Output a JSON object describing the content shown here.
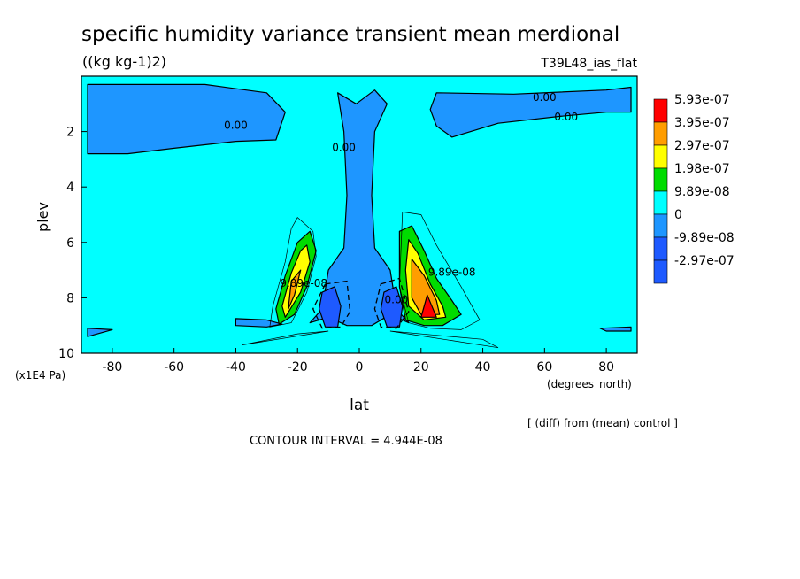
{
  "chart_data": {
    "type": "heatmap",
    "title": "specific humidity variance transient mean merdional",
    "units": "((kg kg-1)2)",
    "run_label": "T39L48_ias_flat",
    "xlabel": "lat",
    "x_units": "(degrees_north)",
    "ylabel": "plev",
    "y_units": "(x1E4 Pa)",
    "xlim": [
      -90,
      90
    ],
    "ylim": [
      10,
      0
    ],
    "x_ticks": [
      -80,
      -60,
      -40,
      -20,
      0,
      20,
      40,
      60,
      80
    ],
    "x_tick_labels": [
      "-80",
      "-60",
      "-40",
      "-20",
      "0",
      "20",
      "40",
      "60",
      "80"
    ],
    "y_ticks": [
      2,
      4,
      6,
      8,
      10
    ],
    "y_tick_labels": [
      "2",
      "4",
      "6",
      "8",
      "10"
    ],
    "footer": "[ (diff) from (mean) control ]",
    "contour_interval": "CONTOUR INTERVAL = 4.944E-08",
    "legend": [
      {
        "label": "5.93e-07",
        "color": "#ff0000"
      },
      {
        "label": "3.95e-07",
        "color": "#ff9d00"
      },
      {
        "label": "2.97e-07",
        "color": "#ffff00"
      },
      {
        "label": "1.98e-07",
        "color": "#00dc00"
      },
      {
        "label": "9.89e-08",
        "color": "#00ffff"
      },
      {
        "label": "0",
        "color": "#1e96ff"
      },
      {
        "label": "-9.89e-08",
        "color": "#1e5aff"
      },
      {
        "label": "-2.97e-07",
        "color": ""
      }
    ],
    "contour_labels": [
      {
        "text": "0.00",
        "x": -40,
        "y": 1.9
      },
      {
        "text": "0.00",
        "x": 60,
        "y": 0.9
      },
      {
        "text": "0.00",
        "x": 67,
        "y": 1.6
      },
      {
        "text": "0.00",
        "x": -5,
        "y": 2.7
      },
      {
        "text": "9.89e-08",
        "x": -18,
        "y": 7.6
      },
      {
        "text": "9.89e-08",
        "x": 30,
        "y": 7.2
      },
      {
        "text": "0.00",
        "x": 12,
        "y": 8.2
      }
    ],
    "regions": [
      {
        "level": "0",
        "color": "#1e96ff",
        "points": [
          [
            -88,
            0.3
          ],
          [
            -50,
            0.3
          ],
          [
            -30,
            0.6
          ],
          [
            -24,
            1.3
          ],
          [
            -27,
            2.3
          ],
          [
            -40,
            2.35
          ],
          [
            -60,
            2.6
          ],
          [
            -75,
            2.8
          ],
          [
            -88,
            2.8
          ]
        ]
      },
      {
        "level": "0",
        "color": "#1e96ff",
        "points": [
          [
            25,
            0.6
          ],
          [
            50,
            0.65
          ],
          [
            80,
            0.5
          ],
          [
            88,
            0.4
          ],
          [
            88,
            1.3
          ],
          [
            80,
            1.3
          ],
          [
            65,
            1.45
          ],
          [
            45,
            1.7
          ],
          [
            30,
            2.2
          ],
          [
            25,
            1.8
          ],
          [
            23,
            1.2
          ]
        ]
      },
      {
        "level": "0",
        "color": "#1e96ff",
        "points": [
          [
            -7,
            0.6
          ],
          [
            -1,
            1.0
          ],
          [
            5,
            0.5
          ],
          [
            9,
            1.0
          ],
          [
            5,
            2.0
          ],
          [
            4,
            4.3
          ],
          [
            5,
            6.2
          ],
          [
            10,
            7.0
          ],
          [
            12,
            8.4
          ],
          [
            16,
            8.9
          ],
          [
            10,
            8.6
          ],
          [
            4,
            9.0
          ],
          [
            -4,
            9.0
          ],
          [
            -10,
            8.7
          ],
          [
            -16,
            8.9
          ],
          [
            -12,
            8.4
          ],
          [
            -10,
            7.0
          ],
          [
            -5,
            6.2
          ],
          [
            -4,
            4.3
          ],
          [
            -5,
            2.0
          ]
        ]
      },
      {
        "level": "0",
        "color": "#1e96ff",
        "points": [
          [
            -40,
            8.75
          ],
          [
            -30,
            8.8
          ],
          [
            -25,
            8.95
          ],
          [
            -30,
            9.05
          ],
          [
            -40,
            9.0
          ]
        ]
      },
      {
        "level": "0",
        "color": "#1e96ff",
        "points": [
          [
            -88,
            9.1
          ],
          [
            -80,
            9.15
          ],
          [
            -88,
            9.4
          ]
        ]
      },
      {
        "level": "0",
        "color": "#1e96ff",
        "points": [
          [
            78,
            9.1
          ],
          [
            88,
            9.05
          ],
          [
            88,
            9.2
          ],
          [
            80,
            9.2
          ]
        ]
      },
      {
        "level": "-9.89e-08",
        "color": "#1e5aff",
        "points": [
          [
            -12,
            7.8
          ],
          [
            -8,
            7.6
          ],
          [
            -6,
            8.3
          ],
          [
            -7,
            9.05
          ],
          [
            -11,
            9.05
          ],
          [
            -13,
            8.4
          ]
        ]
      },
      {
        "level": "-9.89e-08",
        "color": "#1e5aff",
        "points": [
          [
            8,
            7.8
          ],
          [
            12,
            7.6
          ],
          [
            14,
            8.3
          ],
          [
            13,
            9.05
          ],
          [
            9,
            9.05
          ],
          [
            7,
            8.4
          ]
        ]
      },
      {
        "level": "9.89e-08",
        "color": "#00dc00",
        "points": [
          [
            -16,
            5.6
          ],
          [
            -14,
            6.3
          ],
          [
            -17,
            7.6
          ],
          [
            -21,
            8.6
          ],
          [
            -26,
            8.95
          ],
          [
            -27,
            8.4
          ],
          [
            -24,
            7.2
          ],
          [
            -20,
            6.0
          ]
        ]
      },
      {
        "level": "9.89e-08",
        "color": "#00dc00",
        "points": [
          [
            13,
            5.6
          ],
          [
            17,
            5.4
          ],
          [
            21,
            6.3
          ],
          [
            25,
            7.3
          ],
          [
            30,
            8.1
          ],
          [
            33,
            8.6
          ],
          [
            27,
            9.0
          ],
          [
            21,
            9.0
          ],
          [
            15,
            8.8
          ],
          [
            13,
            7.6
          ]
        ]
      },
      {
        "level": "1.98e-07",
        "color": "#ffff00",
        "points": [
          [
            -17,
            6.1
          ],
          [
            -16,
            6.7
          ],
          [
            -19,
            7.8
          ],
          [
            -24,
            8.7
          ],
          [
            -25,
            8.3
          ],
          [
            -22,
            7.1
          ],
          [
            -19,
            6.3
          ]
        ]
      },
      {
        "level": "1.98e-07",
        "color": "#ffff00",
        "points": [
          [
            16,
            5.9
          ],
          [
            19,
            6.4
          ],
          [
            23,
            7.5
          ],
          [
            27,
            8.3
          ],
          [
            28,
            8.7
          ],
          [
            21,
            8.8
          ],
          [
            16,
            8.3
          ],
          [
            15,
            7.0
          ]
        ]
      },
      {
        "level": "2.97e-07",
        "color": "#ff9d00",
        "points": [
          [
            -19,
            7.0
          ],
          [
            -21,
            7.9
          ],
          [
            -23,
            8.4
          ],
          [
            -22,
            7.4
          ]
        ]
      },
      {
        "level": "2.97e-07",
        "color": "#ff9d00",
        "points": [
          [
            17,
            6.6
          ],
          [
            21,
            7.2
          ],
          [
            25,
            8.1
          ],
          [
            26,
            8.6
          ],
          [
            20,
            8.6
          ],
          [
            17,
            8.0
          ]
        ]
      },
      {
        "level": "3.95e-07",
        "color": "#ff0000",
        "points": [
          [
            22,
            7.9
          ],
          [
            25,
            8.7
          ],
          [
            20,
            8.7
          ]
        ]
      }
    ],
    "contour_lines": [
      {
        "dashed": false,
        "points": [
          [
            -20,
            5.1
          ],
          [
            -15,
            5.6
          ],
          [
            -14,
            6.5
          ],
          [
            -17,
            7.8
          ],
          [
            -22,
            8.9
          ],
          [
            -29,
            9.05
          ],
          [
            -28,
            8.3
          ],
          [
            -24,
            6.7
          ],
          [
            -22,
            5.5
          ]
        ]
      },
      {
        "dashed": false,
        "points": [
          [
            14,
            4.9
          ],
          [
            20,
            5.0
          ],
          [
            25,
            6.1
          ],
          [
            33,
            7.6
          ],
          [
            39,
            8.8
          ],
          [
            33,
            9.15
          ],
          [
            23,
            9.1
          ],
          [
            16,
            8.9
          ],
          [
            13,
            7.6
          ]
        ]
      },
      {
        "dashed": true,
        "points": [
          [
            -11,
            7.5
          ],
          [
            -4,
            7.4
          ],
          [
            -3,
            8.5
          ],
          [
            -6,
            9.05
          ],
          [
            -12,
            9.1
          ],
          [
            -15,
            8.4
          ]
        ]
      },
      {
        "dashed": true,
        "points": [
          [
            7,
            7.5
          ],
          [
            13,
            7.3
          ],
          [
            16,
            8.5
          ],
          [
            12,
            9.1
          ],
          [
            7,
            9.05
          ],
          [
            5,
            8.4
          ]
        ]
      },
      {
        "dashed": false,
        "points": [
          [
            -38,
            9.7
          ],
          [
            -20,
            9.3
          ],
          [
            -10,
            9.2
          ]
        ]
      },
      {
        "dashed": false,
        "points": [
          [
            10,
            9.2
          ],
          [
            25,
            9.35
          ],
          [
            40,
            9.5
          ],
          [
            45,
            9.8
          ]
        ]
      }
    ]
  }
}
